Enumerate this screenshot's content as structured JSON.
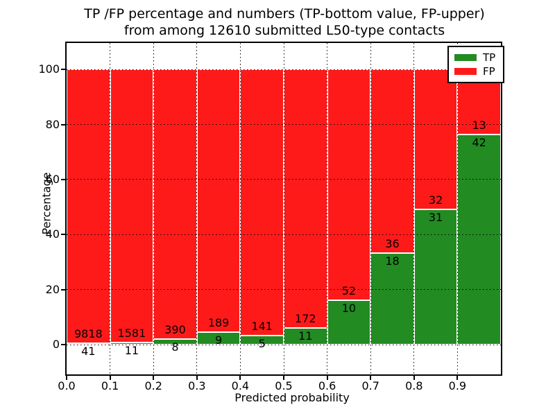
{
  "chart_data": {
    "type": "bar",
    "stacked": true,
    "normalized_to_percent": true,
    "title_lines": [
      "TP /FP percentage and numbers (TP-bottom value, FP-upper)",
      "from among 12610 submitted L50-type contacts"
    ],
    "total_contacts": "12610",
    "xlabel": "Predicted probability",
    "ylabel": "Percentage",
    "xlim": [
      0.0,
      1.0
    ],
    "ylim": [
      -10.8,
      109.6
    ],
    "bin_width": 0.1,
    "bin_starts": [
      0.0,
      0.1,
      0.2,
      0.3,
      0.4,
      0.5,
      0.6,
      0.7,
      0.8,
      0.9
    ],
    "x_tick_labels": [
      "0.0",
      "0.1",
      "0.2",
      "0.3",
      "0.4",
      "0.5",
      "0.6",
      "0.7",
      "0.8",
      "0.9"
    ],
    "y_tick_values": [
      0,
      20,
      40,
      60,
      80,
      100
    ],
    "grid": "dotted",
    "series": [
      {
        "name": "TP",
        "position": "bottom",
        "color": "#228b22",
        "counts": [
          41,
          11,
          8,
          9,
          5,
          11,
          10,
          18,
          31,
          42
        ]
      },
      {
        "name": "FP",
        "position": "top",
        "color": "#ff1a1a",
        "counts": [
          9818,
          1581,
          390,
          189,
          141,
          172,
          52,
          36,
          32,
          13
        ]
      }
    ],
    "tp_percent_of_bin": [
      0.4,
      0.7,
      2.0,
      4.5,
      3.4,
      6.0,
      16.1,
      33.3,
      49.2,
      76.4
    ],
    "legend": {
      "position": "upper right",
      "entries": [
        {
          "label": "TP",
          "color": "#228b22"
        },
        {
          "label": "FP",
          "color": "#ff1a1a"
        }
      ]
    }
  }
}
